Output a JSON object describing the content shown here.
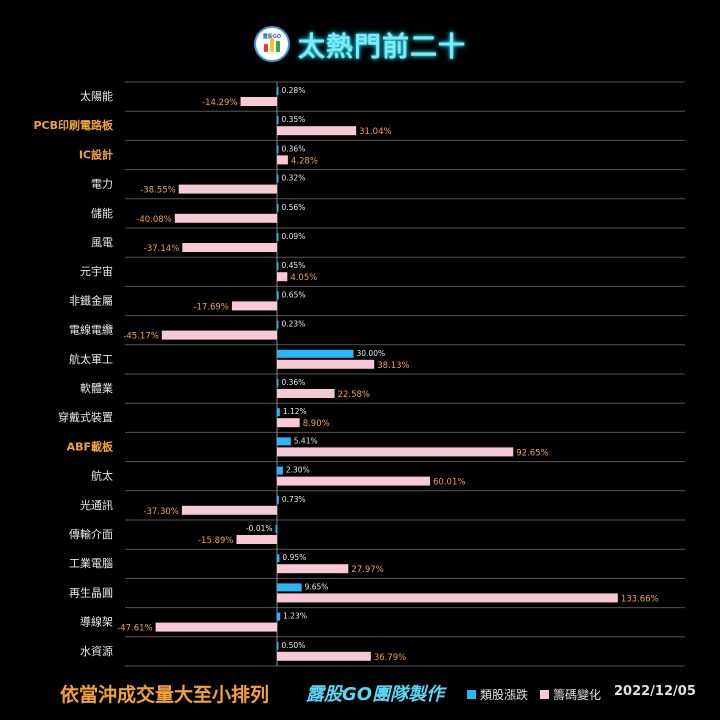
{
  "header": {
    "title": "太熱門前二十",
    "logo_text": "露股GO"
  },
  "footer": {
    "sort_note": "依當沖成交量大至小排列",
    "team": "露股GO團隊製作",
    "date": "2022/12/05"
  },
  "colors": {
    "sector_change": "#29b6f6",
    "chip_change": "#f8c8d4",
    "negative_label": "#f2a23a",
    "label_text": "#e8e8e8",
    "highlight_label": "#f2a23a",
    "grid": "#555555"
  },
  "chart_data": {
    "type": "bar",
    "orientation": "horizontal",
    "title": "",
    "xlabel": "",
    "ylabel": "",
    "legend_position": "bottom",
    "grid": true,
    "categories": [
      "太陽能",
      "PCB印刷電路板",
      "IC設計",
      "電力",
      "儲能",
      "風電",
      "元宇宙",
      "非鐵金屬",
      "電線電纜",
      "航太軍工",
      "軟體業",
      "穿戴式裝置",
      "ABF載板",
      "航太",
      "光通訊",
      "傳輸介面",
      "工業電腦",
      "再生晶圓",
      "導線架",
      "水資源"
    ],
    "highlighted_categories": [
      "PCB印刷電路板",
      "IC設計",
      "ABF載板"
    ],
    "series": [
      {
        "name": "類股漲跌",
        "values": [
          0.28,
          0.35,
          0.36,
          0.32,
          0.56,
          0.09,
          0.45,
          0.65,
          0.23,
          30.0,
          0.36,
          1.12,
          5.41,
          2.3,
          0.73,
          -0.01,
          0.95,
          9.65,
          1.23,
          0.5
        ],
        "labels": [
          "0.28%",
          "0.35%",
          "0.36%",
          "0.32%",
          "0.56%",
          "0.09%",
          "0.45%",
          "0.65%",
          "0.23%",
          "30.00%",
          "0.36%",
          "1.12%",
          "5.41%",
          "2.30%",
          "0.73%",
          "-0.01%",
          "0.95%",
          "9.65%",
          "1.23%",
          "0.50%"
        ]
      },
      {
        "name": "籌碼變化",
        "values": [
          -14.29,
          31.04,
          4.28,
          -38.55,
          -40.08,
          -37.14,
          4.05,
          -17.69,
          -45.17,
          38.13,
          22.58,
          8.9,
          92.65,
          60.01,
          -37.3,
          -15.89,
          27.97,
          133.66,
          -47.61,
          36.79
        ],
        "labels": [
          "-14.29%",
          "31.04%",
          "4.28%",
          "-38.55%",
          "-40.08%",
          "-37.14%",
          "4.05%",
          "-17.69%",
          "-45.17%",
          "38.13%",
          "22.58%",
          "8.90%",
          "92.65%",
          "60.01%",
          "-37.30%",
          "-15.89%",
          "27.97%",
          "133.66%",
          "-47.61%",
          "36.79%"
        ]
      }
    ]
  }
}
